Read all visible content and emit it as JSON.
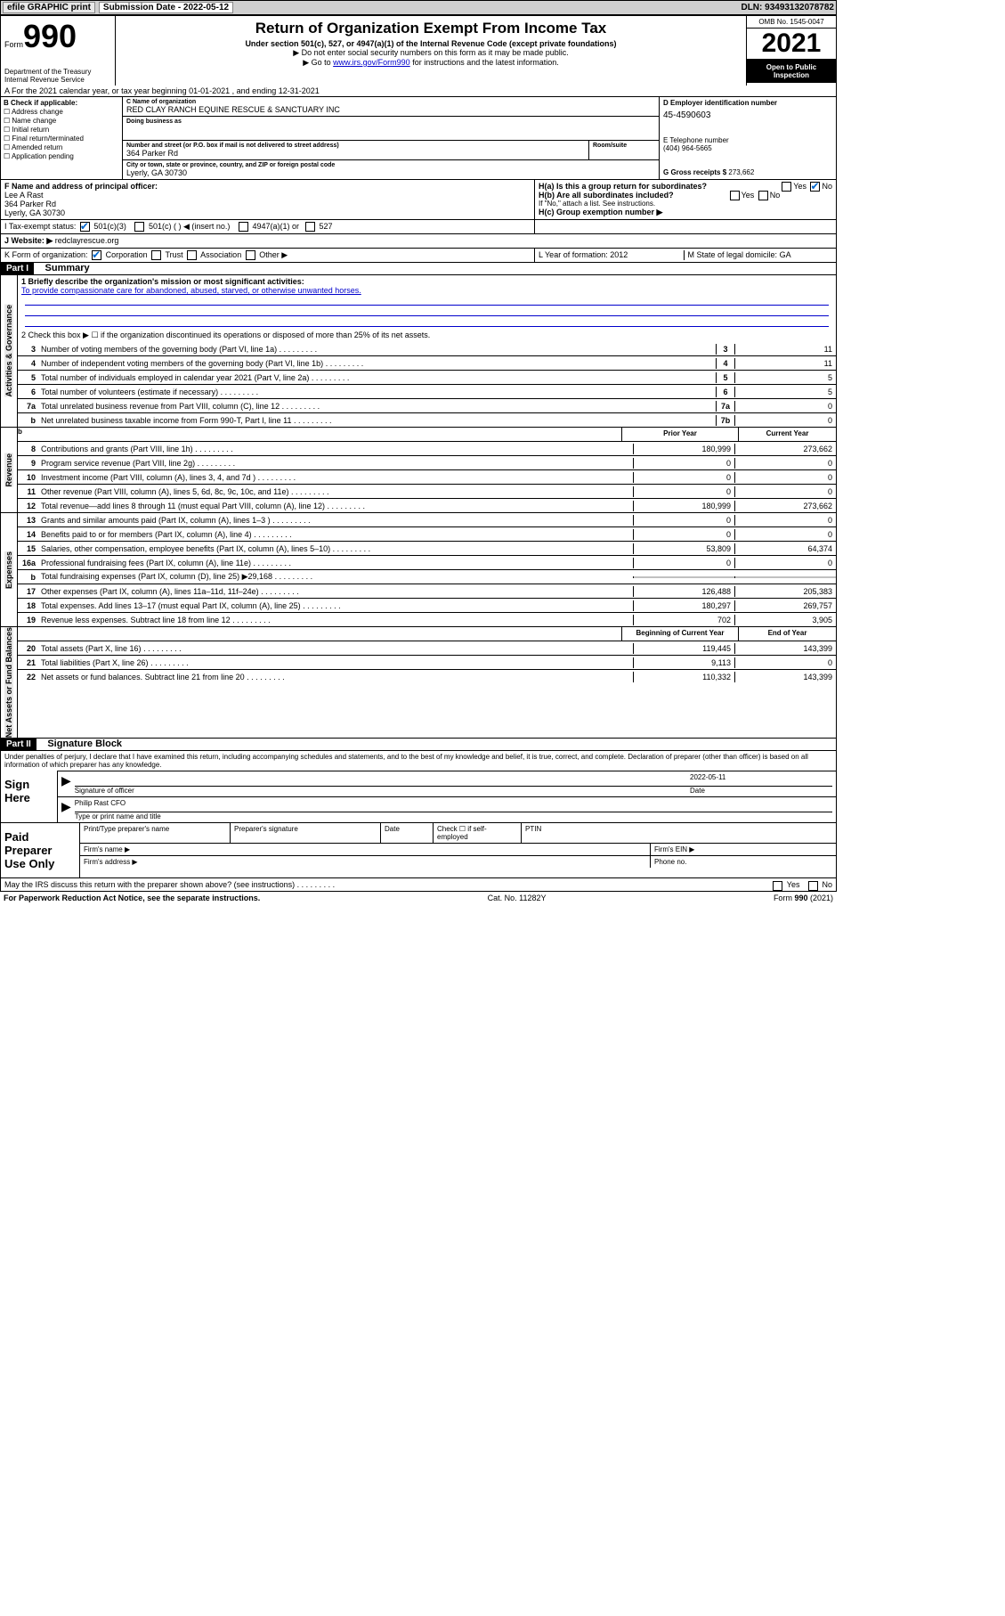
{
  "topbar": {
    "efile": "efile GRAPHIC print",
    "submission_label": "Submission Date - 2022-05-12",
    "dln_label": "DLN: 93493132078782"
  },
  "header": {
    "form_word": "Form",
    "form_num": "990",
    "dept": "Department of the Treasury\nInternal Revenue Service",
    "title": "Return of Organization Exempt From Income Tax",
    "sub": "Under section 501(c), 527, or 4947(a)(1) of the Internal Revenue Code (except private foundations)",
    "note1": "▶ Do not enter social security numbers on this form as it may be made public.",
    "note2_pre": "▶ Go to ",
    "note2_link": "www.irs.gov/Form990",
    "note2_post": " for instructions and the latest information.",
    "omb": "OMB No. 1545-0047",
    "year": "2021",
    "open": "Open to Public Inspection"
  },
  "lineA": "A For the 2021 calendar year, or tax year beginning 01-01-2021   , and ending 12-31-2021",
  "colB": {
    "label": "B Check if applicable:",
    "opts": [
      "Address change",
      "Name change",
      "Initial return",
      "Final return/terminated",
      "Amended return",
      "Application pending"
    ]
  },
  "colC": {
    "name_label": "C Name of organization",
    "name": "RED CLAY RANCH EQUINE RESCUE & SANCTUARY INC",
    "dba_label": "Doing business as",
    "dba": "",
    "street_label": "Number and street (or P.O. box if mail is not delivered to street address)",
    "room_label": "Room/suite",
    "street": "364 Parker Rd",
    "city_label": "City or town, state or province, country, and ZIP or foreign postal code",
    "city": "Lyerly, GA   30730"
  },
  "colD": {
    "ein_label": "D Employer identification number",
    "ein": "45-4590603",
    "tel_label": "E Telephone number",
    "tel": "(404) 964-5665",
    "gross_label": "G Gross receipts $",
    "gross": "273,662"
  },
  "colF": {
    "label": "F Name and address of principal officer:",
    "name": "Lee A Rast",
    "street": "364 Parker Rd",
    "city": "Lyerly, GA   30730"
  },
  "colH": {
    "a": "H(a)  Is this a group return for subordinates?",
    "a_yes": "Yes",
    "a_no": "No",
    "b": "H(b)  Are all subordinates included?",
    "b_note": "If \"No,\" attach a list. See instructions.",
    "c": "H(c)  Group exemption number ▶"
  },
  "lineI": {
    "label": "I   Tax-exempt status:",
    "opts": [
      "501(c)(3)",
      "501(c) (  ) ◀ (insert no.)",
      "4947(a)(1) or",
      "527"
    ]
  },
  "lineJ": {
    "label": "J   Website: ▶",
    "val": "redclayrescue.org"
  },
  "lineK": {
    "label": "K Form of organization:",
    "opts": [
      "Corporation",
      "Trust",
      "Association",
      "Other ▶"
    ]
  },
  "lineL": {
    "label": "L Year of formation: ",
    "val": "2012"
  },
  "lineM": {
    "label": "M State of legal domicile: ",
    "val": "GA"
  },
  "part1": {
    "header": "Part I",
    "title": "Summary",
    "l1_label": "1   Briefly describe the organization's mission or most significant activities:",
    "l1_val": "To provide compassionate care for abandoned, abused, starved, or otherwise unwanted horses.",
    "l2": "2   Check this box ▶ ☐  if the organization discontinued its operations or disposed of more than 25% of its net assets.",
    "gov": [
      {
        "n": "3",
        "t": "Number of voting members of the governing body (Part VI, line 1a)",
        "v": "11"
      },
      {
        "n": "4",
        "t": "Number of independent voting members of the governing body (Part VI, line 1b)",
        "v": "11"
      },
      {
        "n": "5",
        "t": "Total number of individuals employed in calendar year 2021 (Part V, line 2a)",
        "v": "5"
      },
      {
        "n": "6",
        "t": "Total number of volunteers (estimate if necessary)",
        "v": "5"
      },
      {
        "n": "7a",
        "t": "Total unrelated business revenue from Part VIII, column (C), line 12",
        "v": "0"
      },
      {
        "n": "b",
        "t": "Net unrelated business taxable income from Form 990-T, Part I, line 11",
        "num": "7b",
        "v": "0"
      }
    ],
    "th_prior": "Prior Year",
    "th_curr": "Current Year",
    "rev": [
      {
        "n": "8",
        "t": "Contributions and grants (Part VIII, line 1h)",
        "p": "180,999",
        "c": "273,662"
      },
      {
        "n": "9",
        "t": "Program service revenue (Part VIII, line 2g)",
        "p": "0",
        "c": "0"
      },
      {
        "n": "10",
        "t": "Investment income (Part VIII, column (A), lines 3, 4, and 7d )",
        "p": "0",
        "c": "0"
      },
      {
        "n": "11",
        "t": "Other revenue (Part VIII, column (A), lines 5, 6d, 8c, 9c, 10c, and 11e)",
        "p": "0",
        "c": "0"
      },
      {
        "n": "12",
        "t": "Total revenue—add lines 8 through 11 (must equal Part VIII, column (A), line 12)",
        "p": "180,999",
        "c": "273,662"
      }
    ],
    "exp": [
      {
        "n": "13",
        "t": "Grants and similar amounts paid (Part IX, column (A), lines 1–3 )",
        "p": "0",
        "c": "0"
      },
      {
        "n": "14",
        "t": "Benefits paid to or for members (Part IX, column (A), line 4)",
        "p": "0",
        "c": "0"
      },
      {
        "n": "15",
        "t": "Salaries, other compensation, employee benefits (Part IX, column (A), lines 5–10)",
        "p": "53,809",
        "c": "64,374"
      },
      {
        "n": "16a",
        "t": "Professional fundraising fees (Part IX, column (A), line 11e)",
        "p": "0",
        "c": "0"
      },
      {
        "n": "b",
        "t": "Total fundraising expenses (Part IX, column (D), line 25) ▶29,168",
        "p": "shaded",
        "c": "shaded"
      },
      {
        "n": "17",
        "t": "Other expenses (Part IX, column (A), lines 11a–11d, 11f–24e)",
        "p": "126,488",
        "c": "205,383"
      },
      {
        "n": "18",
        "t": "Total expenses. Add lines 13–17 (must equal Part IX, column (A), line 25)",
        "p": "180,297",
        "c": "269,757"
      },
      {
        "n": "19",
        "t": "Revenue less expenses. Subtract line 18 from line 12",
        "p": "702",
        "c": "3,905"
      }
    ],
    "th_begin": "Beginning of Current Year",
    "th_end": "End of Year",
    "net": [
      {
        "n": "20",
        "t": "Total assets (Part X, line 16)",
        "p": "119,445",
        "c": "143,399"
      },
      {
        "n": "21",
        "t": "Total liabilities (Part X, line 26)",
        "p": "9,113",
        "c": "0"
      },
      {
        "n": "22",
        "t": "Net assets or fund balances. Subtract line 21 from line 20",
        "p": "110,332",
        "c": "143,399"
      }
    ]
  },
  "part2": {
    "header": "Part II",
    "title": "Signature Block",
    "decl": "Under penalties of perjury, I declare that I have examined this return, including accompanying schedules and statements, and to the best of my knowledge and belief, it is true, correct, and complete. Declaration of preparer (other than officer) is based on all information of which preparer has any knowledge.",
    "sign_here": "Sign Here",
    "sig_of": "Signature of officer",
    "date_label": "Date",
    "date_val": "2022-05-11",
    "name_title": "Philip Rast CFO",
    "type_label": "Type or print name and title",
    "paid": "Paid Preparer Use Only",
    "pp_name": "Print/Type preparer's name",
    "pp_sig": "Preparer's signature",
    "pp_date": "Date",
    "pp_check": "Check ☐ if self-employed",
    "ptin": "PTIN",
    "firm_name": "Firm's name   ▶",
    "firm_ein": "Firm's EIN ▶",
    "firm_addr": "Firm's address ▶",
    "phone": "Phone no.",
    "may": "May the IRS discuss this return with the preparer shown above? (see instructions)",
    "may_yes": "Yes",
    "may_no": "No"
  },
  "footer": {
    "pra": "For Paperwork Reduction Act Notice, see the separate instructions.",
    "cat": "Cat. No. 11282Y",
    "form": "Form 990 (2021)"
  },
  "vtabs": {
    "gov": "Activities & Governance",
    "rev": "Revenue",
    "exp": "Expenses",
    "net": "Net Assets or Fund Balances"
  }
}
